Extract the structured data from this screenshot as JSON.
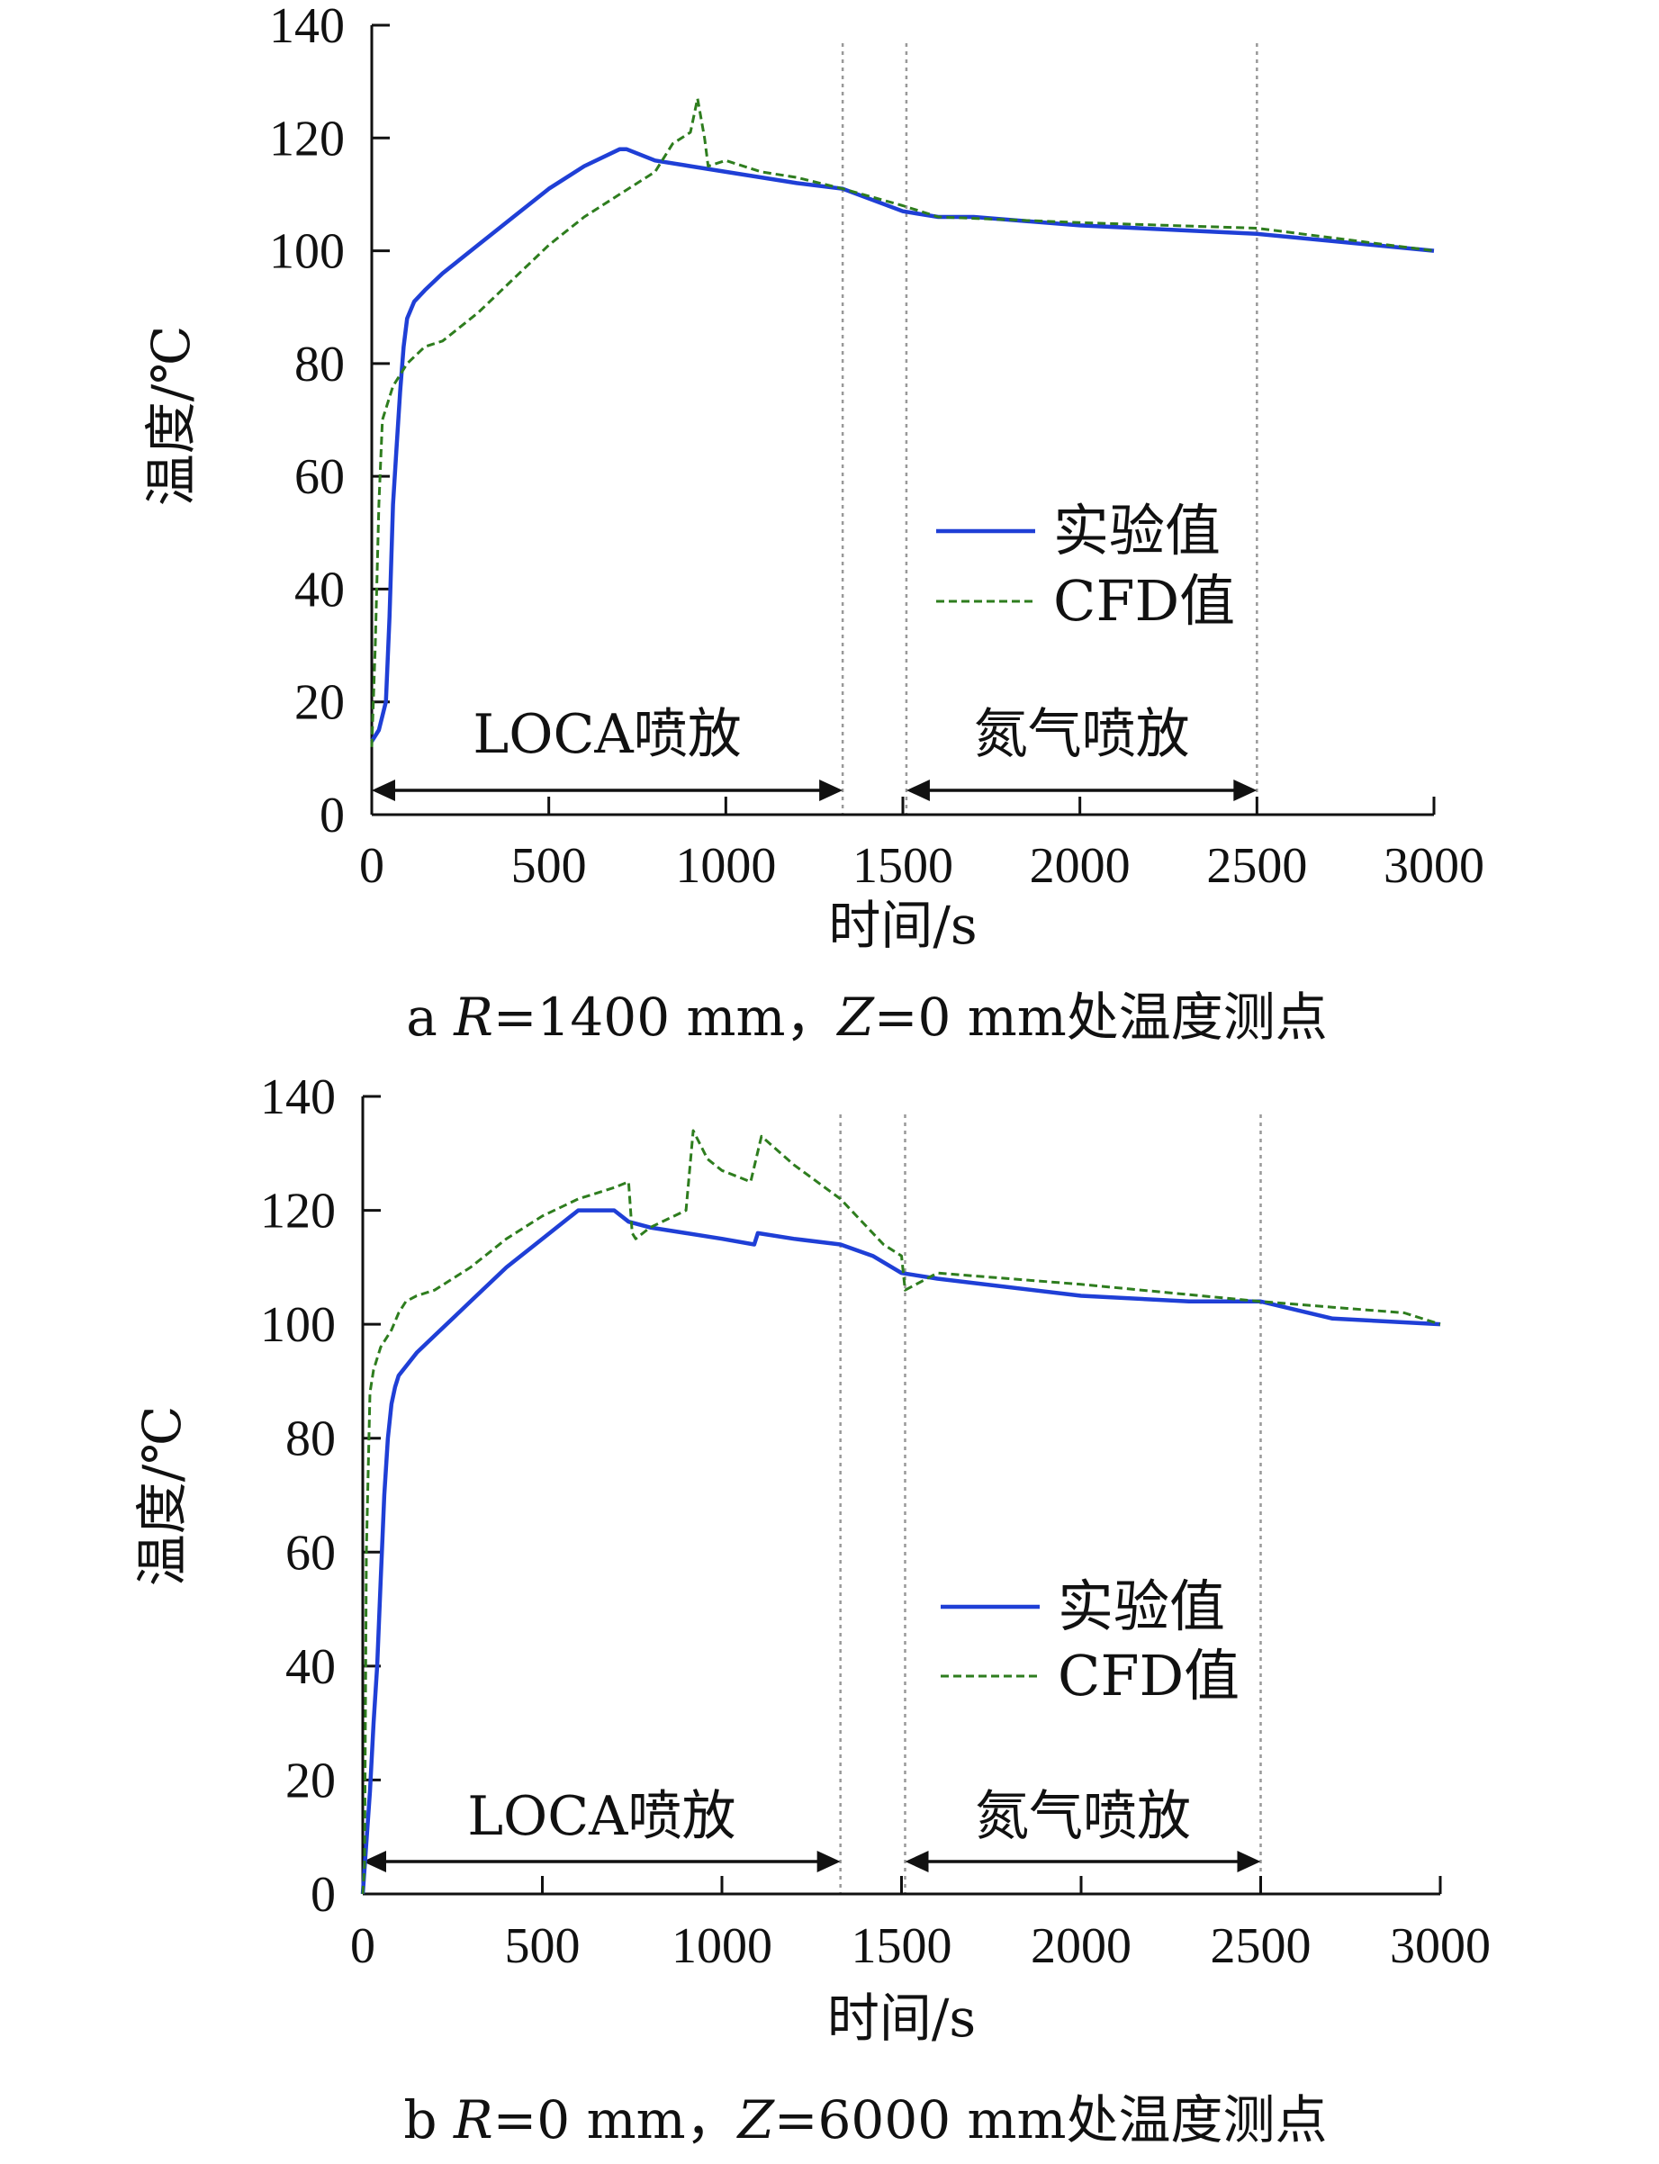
{
  "colors": {
    "experiment": "#1f3fd6",
    "cfd": "#2e7d1e",
    "axis": "#111111",
    "divider": "#999999"
  },
  "chart_data": [
    {
      "type": "line",
      "caption": {
        "prefix": "a ",
        "r_var": "R",
        "r_val": "=1400 mm，",
        "z_var": "Z",
        "z_val": "=0 mm处温度测点"
      },
      "xlabel": "时间/s",
      "ylabel": "温度/℃",
      "xlim": [
        0,
        3000
      ],
      "ylim": [
        0,
        140
      ],
      "xticks": [
        "0",
        "500",
        "1000",
        "1500",
        "2000",
        "2500",
        "3000"
      ],
      "yticks": [
        "0",
        "20",
        "40",
        "60",
        "80",
        "100",
        "120",
        "140"
      ],
      "grid": false,
      "legend_position": "right-middle",
      "dividers": [
        1330,
        1510,
        2500
      ],
      "phases": [
        {
          "label": "LOCA喷放",
          "from": 0,
          "to": 1330
        },
        {
          "label": "氮气喷放",
          "from": 1510,
          "to": 2500
        }
      ],
      "series": [
        {
          "name": "实验值",
          "style": "solid",
          "x": [
            0,
            20,
            40,
            50,
            60,
            70,
            80,
            90,
            100,
            120,
            150,
            200,
            300,
            400,
            500,
            600,
            700,
            720,
            800,
            900,
            1000,
            1100,
            1200,
            1330,
            1500,
            1600,
            1700,
            2000,
            2500,
            3000
          ],
          "y": [
            13,
            15,
            20,
            35,
            55,
            65,
            75,
            83,
            88,
            91,
            93,
            96,
            101,
            106,
            111,
            115,
            118,
            118,
            116,
            115,
            114,
            113,
            112,
            111,
            107,
            106,
            106,
            104.5,
            103,
            100
          ]
        },
        {
          "name": "CFD值",
          "style": "dashed",
          "x": [
            0,
            10,
            20,
            30,
            40,
            60,
            80,
            100,
            150,
            200,
            300,
            400,
            500,
            600,
            700,
            800,
            850,
            900,
            920,
            940,
            950,
            1000,
            1100,
            1200,
            1330,
            1500,
            1600,
            2000,
            2500,
            3000
          ],
          "y": [
            12,
            30,
            55,
            70,
            72,
            76,
            78,
            80,
            83,
            84,
            89,
            95,
            101,
            106,
            110,
            114,
            119,
            121,
            127,
            120,
            115,
            116,
            114,
            113,
            111,
            108,
            106,
            105,
            104,
            100
          ]
        }
      ]
    },
    {
      "type": "line",
      "caption": {
        "prefix": "b ",
        "r_var": "R",
        "r_val": "=0 mm，",
        "z_var": "Z",
        "z_val": "=6000 mm处温度测点"
      },
      "xlabel": "时间/s",
      "ylabel": "温度/℃",
      "xlim": [
        0,
        3000
      ],
      "ylim": [
        0,
        140
      ],
      "xticks": [
        "0",
        "500",
        "1000",
        "1500",
        "2000",
        "2500",
        "3000"
      ],
      "yticks": [
        "0",
        "20",
        "40",
        "60",
        "80",
        "100",
        "120",
        "140"
      ],
      "grid": false,
      "legend_position": "right-middle",
      "dividers": [
        1330,
        1510,
        2500
      ],
      "phases": [
        {
          "label": "LOCA喷放",
          "from": 0,
          "to": 1330
        },
        {
          "label": "氮气喷放",
          "from": 1510,
          "to": 2500
        }
      ],
      "series": [
        {
          "name": "实验值",
          "style": "solid",
          "x": [
            0,
            20,
            30,
            40,
            50,
            60,
            70,
            80,
            90,
            100,
            150,
            200,
            300,
            400,
            500,
            600,
            700,
            740,
            800,
            900,
            1000,
            1090,
            1100,
            1200,
            1330,
            1420,
            1500,
            1600,
            2000,
            2300,
            2500,
            2700,
            3000
          ],
          "y": [
            0,
            18,
            30,
            40,
            55,
            70,
            80,
            86,
            89,
            91,
            95,
            98,
            104,
            110,
            115,
            120,
            120,
            118,
            117,
            116,
            115,
            114,
            116,
            115,
            114,
            112,
            109,
            108,
            105,
            104,
            104,
            101,
            100
          ]
        },
        {
          "name": "CFD值",
          "style": "dashed",
          "x": [
            0,
            5,
            10,
            20,
            30,
            50,
            80,
            100,
            120,
            150,
            200,
            300,
            400,
            500,
            600,
            700,
            740,
            750,
            760,
            800,
            900,
            920,
            960,
            1000,
            1080,
            1110,
            1200,
            1330,
            1450,
            1500,
            1510,
            1600,
            2000,
            2500,
            2700,
            2900,
            3000
          ],
          "y": [
            0,
            5,
            60,
            88,
            92,
            96,
            99,
            102,
            104,
            105,
            106,
            110,
            115,
            119,
            122,
            124,
            125,
            116,
            115,
            117,
            120,
            134,
            129,
            127,
            125,
            133,
            128,
            122,
            114,
            112,
            106,
            109,
            107,
            104,
            103,
            102,
            100
          ]
        }
      ]
    }
  ]
}
